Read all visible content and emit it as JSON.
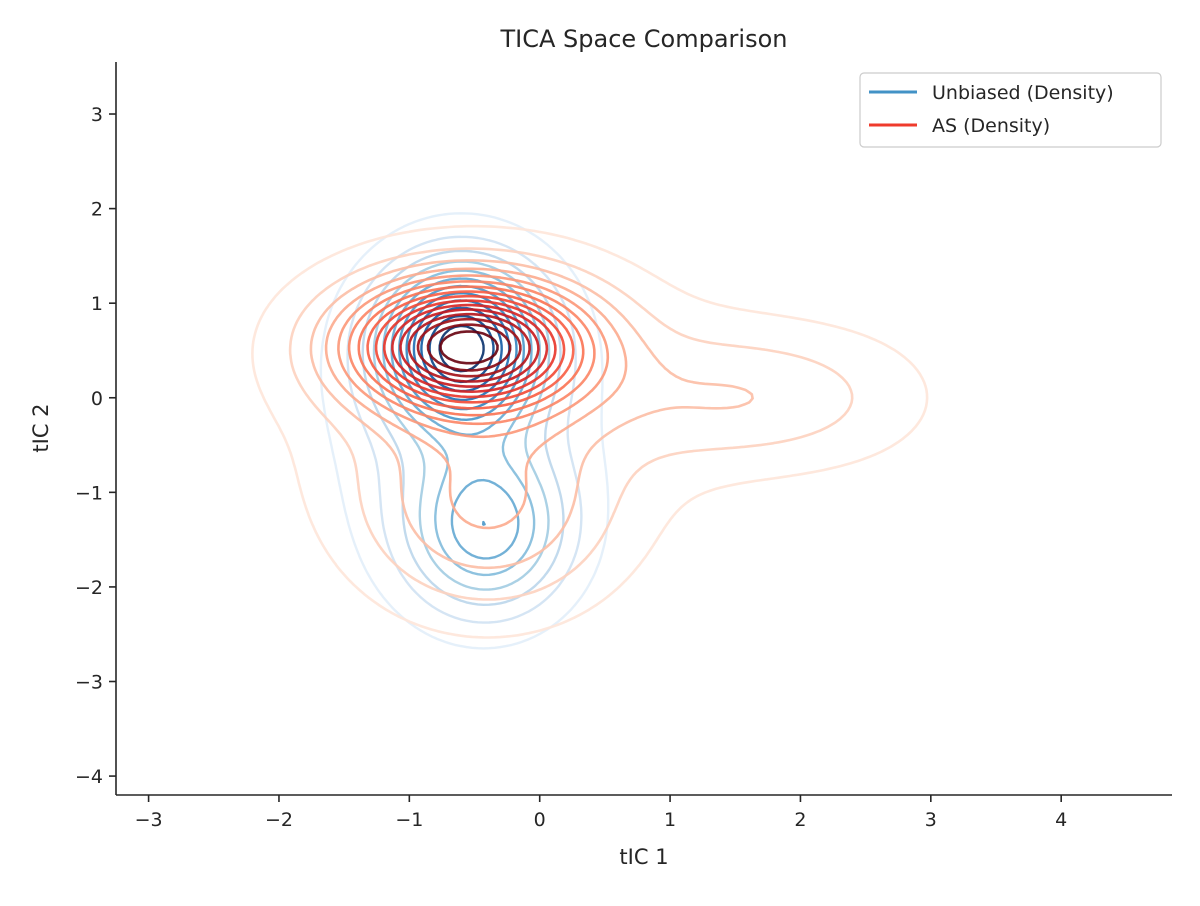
{
  "chart_data": {
    "type": "contour",
    "title": "TICA Space Comparison",
    "xlabel": "tIC 1",
    "ylabel": "tIC 2",
    "xlim": [
      -3.25,
      4.85
    ],
    "ylim": [
      -4.2,
      3.55
    ],
    "xticks": [
      -3,
      -2,
      -1,
      0,
      1,
      2,
      3,
      4
    ],
    "yticks": [
      -4,
      -3,
      -2,
      -1,
      0,
      1,
      2,
      3
    ],
    "xtick_labels": [
      "−3",
      "−2",
      "−1",
      "0",
      "1",
      "2",
      "3",
      "4"
    ],
    "ytick_labels": [
      "−4",
      "−3",
      "−2",
      "−1",
      "0",
      "1",
      "2",
      "3"
    ],
    "grid": false,
    "legend_position": "top-right",
    "series": [
      {
        "name": "Unbiased (Density)",
        "color": "#4292c6",
        "colormap": "Blues",
        "levels": 12,
        "components": [
          {
            "weight": 1.0,
            "mean": [
              -0.6,
              0.55
            ],
            "sd": [
              0.4,
              0.55
            ]
          },
          {
            "weight": 0.5,
            "mean": [
              -0.4,
              -1.4
            ],
            "sd": [
              0.42,
              0.6
            ]
          },
          {
            "weight": 0.2,
            "mean": [
              -0.6,
              -0.2
            ],
            "sd": [
              0.75,
              1.3
            ]
          }
        ]
      },
      {
        "name": "AS (Density)",
        "color": "#ef3b2c",
        "colormap": "Reds",
        "levels": 16,
        "components": [
          {
            "weight": 1.0,
            "mean": [
              -0.55,
              0.55
            ],
            "sd": [
              0.6,
              0.45
            ]
          },
          {
            "weight": 0.22,
            "mean": [
              -0.4,
              -1.2
            ],
            "sd": [
              0.7,
              0.8
            ]
          },
          {
            "weight": 0.14,
            "mean": [
              1.5,
              0.0
            ],
            "sd": [
              0.75,
              0.5
            ]
          },
          {
            "weight": 0.1,
            "mean": [
              -0.4,
              0.2
            ],
            "sd": [
              1.4,
              1.3
            ]
          },
          {
            "weight": 0.05,
            "mean": [
              2.5,
              0.0
            ],
            "sd": [
              0.7,
              0.65
            ]
          }
        ]
      }
    ]
  }
}
